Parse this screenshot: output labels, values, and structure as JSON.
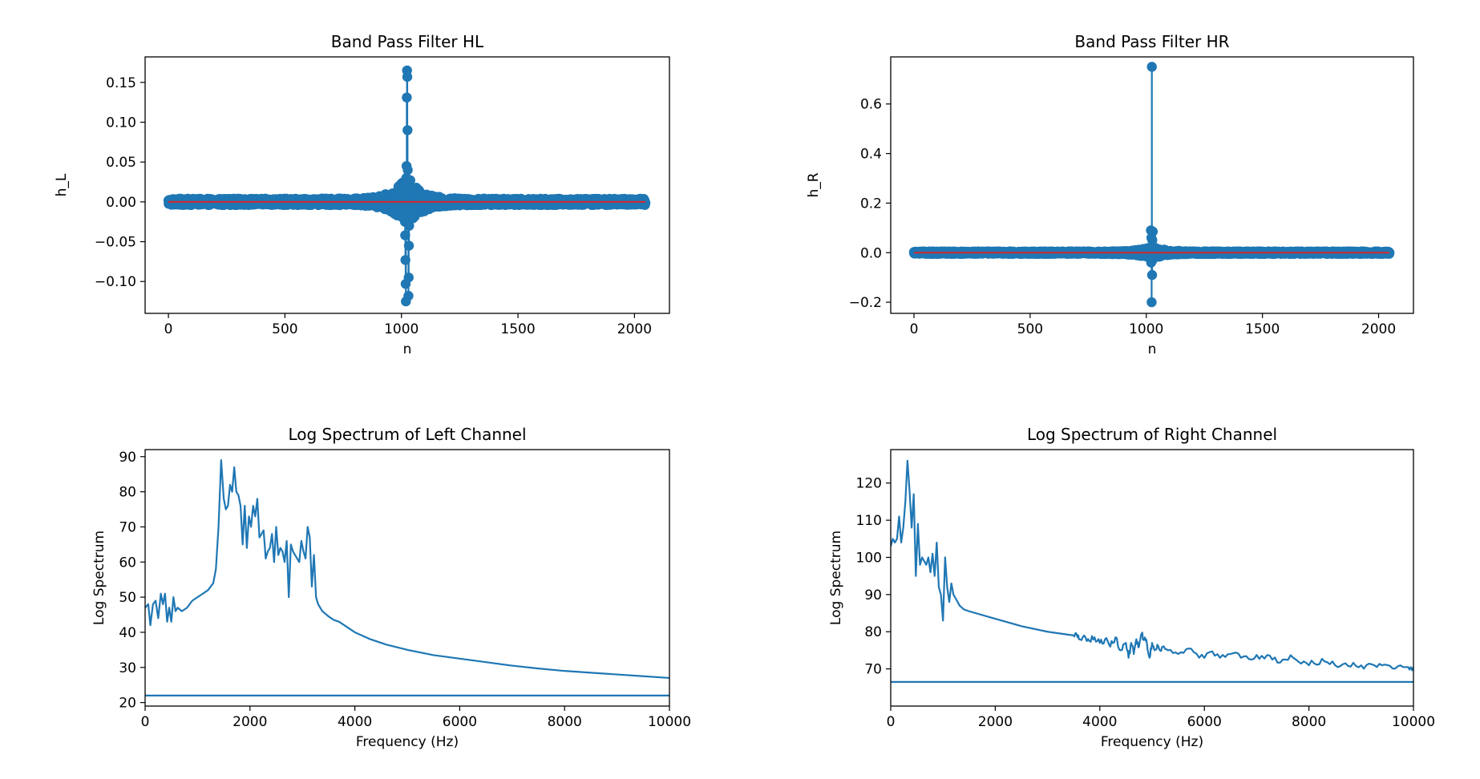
{
  "colors": {
    "series": "#1f77b4",
    "baseline": "#d62728",
    "axes": "#000000",
    "background": "#ffffff"
  },
  "chart_data": [
    {
      "type": "stem",
      "title": "Band Pass Filter HL",
      "xlabel": "n",
      "ylabel": "h_L",
      "xlim": [
        -100,
        2150
      ],
      "ylim": [
        -0.14,
        0.182
      ],
      "xticks": [
        0,
        500,
        1000,
        1500,
        2000
      ],
      "xtick_labels": [
        "0",
        "500",
        "1000",
        "1500",
        "2000"
      ],
      "yticks": [
        -0.1,
        -0.05,
        0.0,
        0.05,
        0.1,
        0.15
      ],
      "ytick_labels": [
        "−0.10",
        "−0.05",
        "0.00",
        "0.05",
        "0.10",
        "0.15"
      ],
      "x_range": [
        0,
        2047
      ],
      "center": 1024,
      "points": [
        [
          1024,
          0.165
        ],
        [
          1025,
          0.157
        ],
        [
          1023,
          0.131
        ],
        [
          1026,
          0.09
        ],
        [
          1022,
          0.045
        ],
        [
          1027,
          0.04
        ],
        [
          1021,
          0.03
        ],
        [
          1028,
          0.028
        ],
        [
          1020,
          0.02
        ],
        [
          1029,
          0.018
        ],
        [
          1019,
          -0.125
        ],
        [
          1030,
          -0.118
        ],
        [
          1018,
          -0.103
        ],
        [
          1031,
          -0.095
        ],
        [
          1017,
          -0.073
        ],
        [
          1032,
          -0.055
        ],
        [
          1016,
          -0.042
        ],
        [
          1033,
          -0.03
        ],
        [
          1015,
          -0.025
        ],
        [
          1034,
          -0.02
        ]
      ],
      "envelope_amplitude": 0.03,
      "envelope_decay": 55,
      "floor": 0.004,
      "grid": false
    },
    {
      "type": "stem",
      "title": "Band Pass Filter HR",
      "xlabel": "n",
      "ylabel": "h_R",
      "xlim": [
        -100,
        2150
      ],
      "ylim": [
        -0.245,
        0.79
      ],
      "xticks": [
        0,
        500,
        1000,
        1500,
        2000
      ],
      "xtick_labels": [
        "0",
        "500",
        "1000",
        "1500",
        "2000"
      ],
      "yticks": [
        -0.2,
        0.0,
        0.2,
        0.4,
        0.6
      ],
      "ytick_labels": [
        "−0.2",
        "0.0",
        "0.2",
        "0.4",
        "0.6"
      ],
      "x_range": [
        0,
        2047
      ],
      "center": 1024,
      "points": [
        [
          1024,
          0.75
        ],
        [
          1020,
          0.09
        ],
        [
          1028,
          0.085
        ],
        [
          1022,
          0.06
        ],
        [
          1026,
          0.05
        ],
        [
          1025,
          -0.09
        ],
        [
          1023,
          -0.2
        ],
        [
          1021,
          -0.04
        ],
        [
          1027,
          -0.03
        ]
      ],
      "envelope_amplitude": 0.02,
      "envelope_decay": 55,
      "floor": 0.005,
      "grid": false
    },
    {
      "type": "line",
      "title": "Log Spectrum of Left Channel",
      "xlabel": "Frequency (Hz)",
      "ylabel": "Log Spectrum",
      "xlim": [
        0,
        10000
      ],
      "ylim": [
        19,
        92
      ],
      "xticks": [
        0,
        2000,
        4000,
        6000,
        8000,
        10000
      ],
      "xtick_labels": [
        "0",
        "2000",
        "4000",
        "6000",
        "8000",
        "10000"
      ],
      "yticks": [
        20,
        30,
        40,
        50,
        60,
        70,
        80,
        90
      ],
      "ytick_labels": [
        "20",
        "30",
        "40",
        "50",
        "60",
        "70",
        "80",
        "90"
      ],
      "series": [
        {
          "x": [
            0,
            60,
            100,
            150,
            200,
            250,
            300,
            340,
            380,
            420,
            460,
            500,
            540,
            580,
            620,
            700,
            800,
            900,
            1000,
            1100,
            1200,
            1300,
            1350,
            1400,
            1450,
            1500,
            1540,
            1580,
            1620,
            1660,
            1700,
            1740,
            1780,
            1820,
            1860,
            1900,
            1940,
            1980,
            2020,
            2060,
            2100,
            2140,
            2180,
            2220,
            2260,
            2300,
            2340,
            2380,
            2420,
            2460,
            2500,
            2540,
            2580,
            2620,
            2660,
            2700,
            2740,
            2780,
            2820,
            2860,
            2900,
            2940,
            2980,
            3020,
            3060,
            3100,
            3140,
            3180,
            3220,
            3260,
            3300,
            3340,
            3380,
            3420,
            3460,
            3500,
            3550,
            3600,
            3700,
            3800,
            4000,
            4300,
            4600,
            5000,
            5500,
            6000,
            6500,
            7000,
            7500,
            8000,
            8500,
            9000,
            9500,
            10000
          ],
          "y": [
            47,
            48,
            42,
            48,
            49,
            44,
            51,
            48,
            51,
            43,
            47,
            43,
            50,
            46,
            47,
            46,
            47,
            49,
            50,
            51,
            52,
            54,
            58,
            70,
            89,
            78,
            75,
            76,
            82,
            80,
            87,
            80,
            79,
            76,
            65,
            76,
            64,
            73,
            70,
            76,
            73,
            78,
            67,
            68,
            69,
            61,
            63,
            64,
            68,
            60,
            70,
            62,
            64,
            63,
            60,
            66,
            50,
            65,
            63,
            62,
            61,
            60,
            66,
            63,
            61,
            70,
            67,
            53,
            62,
            50,
            48,
            47,
            46,
            45.5,
            45,
            44.5,
            44,
            43.5,
            43,
            42,
            40,
            38,
            36.5,
            35,
            33.5,
            32.5,
            31.5,
            30.5,
            29.7,
            29,
            28.5,
            28,
            27.5,
            27
          ]
        }
      ],
      "hline": 22,
      "grid": false
    },
    {
      "type": "line",
      "title": "Log Spectrum of Right Channel",
      "xlabel": "Frequency (Hz)",
      "ylabel": "Log Spectrum",
      "xlim": [
        0,
        10000
      ],
      "ylim": [
        60,
        129
      ],
      "xticks": [
        0,
        2000,
        4000,
        6000,
        8000,
        10000
      ],
      "xtick_labels": [
        "0",
        "2000",
        "4000",
        "6000",
        "8000",
        "10000"
      ],
      "yticks": [
        70,
        80,
        90,
        100,
        110,
        120
      ],
      "ytick_labels": [
        "70",
        "80",
        "90",
        "100",
        "110",
        "120"
      ],
      "series": [
        {
          "x": [
            0,
            40,
            80,
            120,
            160,
            200,
            240,
            280,
            320,
            360,
            400,
            440,
            480,
            520,
            560,
            600,
            640,
            680,
            720,
            760,
            800,
            840,
            880,
            920,
            960,
            1000,
            1040,
            1080,
            1120,
            1160,
            1200,
            1240,
            1280,
            1320,
            1360,
            1400,
            1440,
            1500,
            2000,
            2500,
            3000,
            3500,
            3550,
            3600,
            3700,
            3800,
            3900,
            4000,
            4100,
            4200,
            4300,
            4400,
            4500,
            4550,
            4600,
            4650,
            4700,
            4750,
            4800,
            4850,
            4900,
            4950,
            5000,
            5050,
            5100,
            5150,
            5200,
            5300,
            5500,
            5700,
            5900,
            6100,
            6300,
            6500,
            6700,
            6900,
            7100,
            7300,
            7500,
            7700,
            7900,
            8100,
            8300,
            8500,
            8700,
            8900,
            9100,
            9300,
            9500,
            9700,
            9900,
            10000
          ],
          "y": [
            103,
            105,
            104,
            105,
            111,
            104,
            108,
            115,
            126,
            118,
            108,
            117,
            95,
            109,
            98,
            100,
            99,
            98,
            100,
            96,
            101,
            95,
            104,
            92,
            90,
            83,
            100,
            92,
            88,
            93,
            90,
            89,
            88,
            87,
            86.5,
            86,
            85.8,
            85.5,
            83.5,
            81.5,
            80,
            79,
            79.5,
            78,
            79,
            77.5,
            78.5,
            77,
            78,
            76,
            78.5,
            75,
            77,
            73,
            77,
            74,
            78,
            76,
            79.5,
            78,
            77,
            73,
            77,
            75,
            76.5,
            75,
            76,
            75,
            74,
            75.5,
            73,
            74.5,
            73,
            74,
            73,
            72.5,
            73.5,
            72.5,
            72.5,
            73,
            72,
            71.5,
            72,
            71,
            71.5,
            70.8,
            71,
            70.5,
            71,
            70.7,
            70.5,
            70.5
          ],
          "noisy_after": 3500
        }
      ],
      "hline": 66.5,
      "grid": false
    }
  ]
}
